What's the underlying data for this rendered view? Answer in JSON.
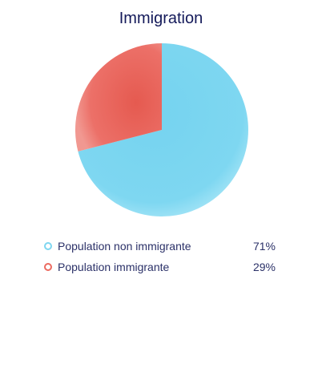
{
  "chart_data": {
    "type": "pie",
    "title": "Immigration",
    "categories": [
      "Population non immigrante",
      "Population immigrante"
    ],
    "values": [
      71,
      29
    ],
    "value_labels": [
      "71%",
      "29%"
    ],
    "colors": [
      "#7ed6f0",
      "#ec6a60"
    ],
    "legend_position": "bottom"
  }
}
